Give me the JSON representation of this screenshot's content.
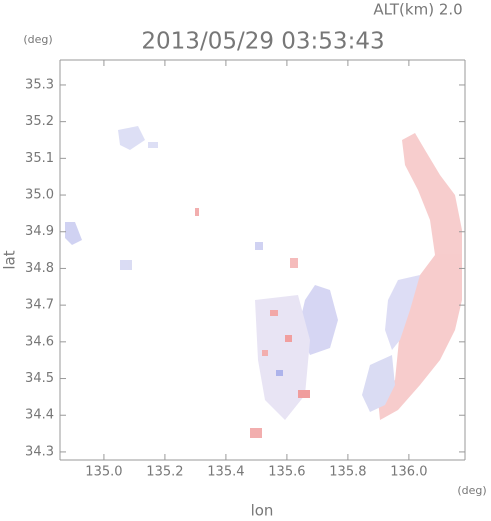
{
  "chart_data": {
    "type": "map",
    "title": "2013/05/29 03:53:43",
    "altitude": "ALT(km) 2.0",
    "x_unit": "(deg)",
    "y_unit": "(deg)",
    "xlabel": "lon",
    "ylabel": "lat",
    "xlim": [
      134.856,
      136.184
    ],
    "ylim": [
      34.278,
      35.368
    ],
    "xticks": [
      {
        "value": 135.0,
        "label": "135.0"
      },
      135.2,
      135.4,
      135.6,
      135.8,
      {
        "value": 136.0,
        "label": "136.0"
      }
    ],
    "yticks": [
      34.3,
      34.4,
      34.5,
      34.6,
      34.7,
      34.8,
      34.9,
      {
        "value": 35.0,
        "label": "35.0"
      },
      35.1,
      35.2,
      35.3
    ]
  }
}
